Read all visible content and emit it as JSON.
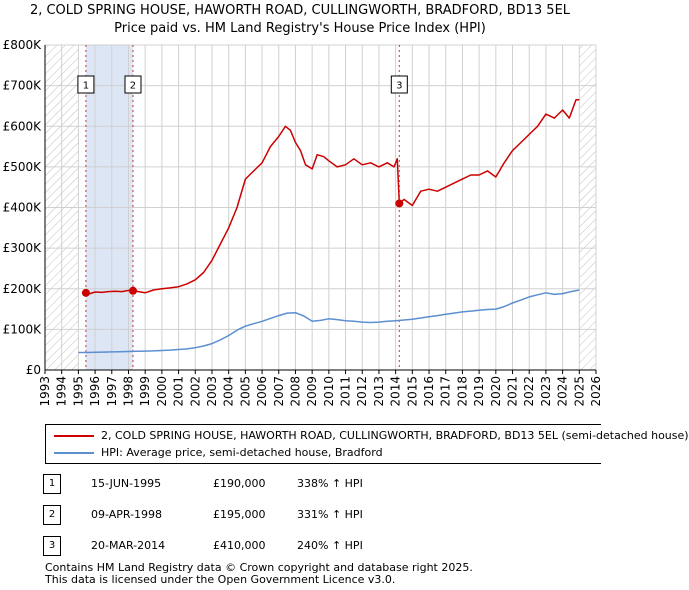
{
  "header": {
    "title_line1": "2, COLD SPRING HOUSE, HAWORTH ROAD, CULLINGWORTH, BRADFORD, BD13 5EL",
    "title_line2": "Price paid vs. HM Land Registry's House Price Index (HPI)"
  },
  "colors": {
    "price_line": "#cc0000",
    "hpi_line": "#5b8fd0",
    "shade": "#dde6f5",
    "hatch": "#c0c0c0",
    "grid": "#d0d0d0",
    "sale_vline": "#cc0000"
  },
  "chart_data": {
    "type": "line",
    "title": "Price paid vs. HM Land Registry's House Price Index (HPI)",
    "xlabel": "",
    "ylabel": "",
    "xlim": [
      1993,
      2026
    ],
    "ylim": [
      0,
      800000
    ],
    "y_ticks": [
      0,
      100000,
      200000,
      300000,
      400000,
      500000,
      600000,
      700000,
      800000
    ],
    "y_tick_labels": [
      "£0",
      "£100K",
      "£200K",
      "£300K",
      "£400K",
      "£500K",
      "£600K",
      "£700K",
      "£800K"
    ],
    "x_ticks": [
      1993,
      1994,
      1995,
      1996,
      1997,
      1998,
      1999,
      2000,
      2001,
      2002,
      2003,
      2004,
      2005,
      2006,
      2007,
      2008,
      2009,
      2010,
      2011,
      2012,
      2013,
      2014,
      2015,
      2016,
      2017,
      2018,
      2019,
      2020,
      2021,
      2022,
      2023,
      2024,
      2025,
      2026
    ],
    "hatched_ranges": [
      [
        1993,
        1995.0
      ],
      [
        2025.0,
        2026
      ]
    ],
    "shaded_ranges": [
      [
        1995.45,
        1998.27
      ]
    ],
    "series": [
      {
        "name": "2, COLD SPRING HOUSE, HAWORTH ROAD, CULLINGWORTH, BRADFORD, BD13 5EL (semi-detached house)",
        "color": "#cc0000",
        "x": [
          1995.45,
          1995.7,
          1996.0,
          1996.4,
          1996.8,
          1997.2,
          1997.6,
          1998.0,
          1998.27,
          1998.6,
          1999.0,
          1999.5,
          2000.0,
          2000.5,
          2001.0,
          2001.5,
          2002.0,
          2002.5,
          2003.0,
          2003.5,
          2004.0,
          2004.5,
          2005.0,
          2005.5,
          2006.0,
          2006.5,
          2007.0,
          2007.4,
          2007.7,
          2008.0,
          2008.3,
          2008.6,
          2009.0,
          2009.3,
          2009.7,
          2010.0,
          2010.5,
          2011.0,
          2011.5,
          2012.0,
          2012.5,
          2013.0,
          2013.5,
          2013.9,
          2014.1,
          2014.22,
          2014.5,
          2015.0,
          2015.5,
          2016.0,
          2016.5,
          2017.0,
          2017.5,
          2018.0,
          2018.5,
          2019.0,
          2019.5,
          2020.0,
          2020.5,
          2021.0,
          2021.5,
          2022.0,
          2022.5,
          2023.0,
          2023.5,
          2024.0,
          2024.4,
          2024.8,
          2025.0
        ],
        "values": [
          190000,
          188000,
          192000,
          191000,
          193000,
          194000,
          193000,
          196000,
          195000,
          193000,
          190000,
          197000,
          200000,
          202000,
          205000,
          212000,
          222000,
          240000,
          270000,
          310000,
          350000,
          400000,
          470000,
          490000,
          510000,
          550000,
          575000,
          600000,
          590000,
          560000,
          540000,
          505000,
          495000,
          530000,
          525000,
          515000,
          500000,
          505000,
          520000,
          505000,
          510000,
          500000,
          510000,
          500000,
          520000,
          410000,
          420000,
          405000,
          440000,
          445000,
          440000,
          450000,
          460000,
          470000,
          480000,
          480000,
          490000,
          475000,
          510000,
          540000,
          560000,
          580000,
          600000,
          630000,
          620000,
          640000,
          620000,
          665000,
          665000
        ]
      },
      {
        "name": "HPI: Average price, semi-detached house, Bradford",
        "color": "#5b8fd0",
        "x": [
          1995.0,
          1995.5,
          1996.0,
          1996.5,
          1997.0,
          1997.5,
          1998.0,
          1998.5,
          1999.0,
          1999.5,
          2000.0,
          2000.5,
          2001.0,
          2001.5,
          2002.0,
          2002.5,
          2003.0,
          2003.5,
          2004.0,
          2004.5,
          2005.0,
          2005.5,
          2006.0,
          2006.5,
          2007.0,
          2007.5,
          2008.0,
          2008.5,
          2009.0,
          2009.5,
          2010.0,
          2010.5,
          2011.0,
          2011.5,
          2012.0,
          2012.5,
          2013.0,
          2013.5,
          2014.0,
          2014.5,
          2015.0,
          2015.5,
          2016.0,
          2016.5,
          2017.0,
          2017.5,
          2018.0,
          2018.5,
          2019.0,
          2019.5,
          2020.0,
          2020.5,
          2021.0,
          2021.5,
          2022.0,
          2022.5,
          2023.0,
          2023.5,
          2024.0,
          2024.5,
          2025.0
        ],
        "values": [
          43000,
          43000,
          43500,
          44000,
          44500,
          45000,
          45500,
          46000,
          46500,
          47000,
          48000,
          49000,
          50500,
          52000,
          55000,
          59000,
          65000,
          74000,
          85000,
          98000,
          108000,
          114000,
          120000,
          127000,
          134000,
          140000,
          141000,
          133000,
          120000,
          122000,
          126000,
          124000,
          121000,
          120000,
          118000,
          117000,
          118000,
          120000,
          121000,
          123000,
          125000,
          128000,
          131000,
          134000,
          137000,
          140000,
          143000,
          145000,
          147000,
          149000,
          150000,
          156000,
          165000,
          172000,
          180000,
          185000,
          190000,
          186000,
          188000,
          193000,
          197000
        ]
      }
    ],
    "sales": [
      {
        "label": "1",
        "x": 1995.45,
        "value": 190000
      },
      {
        "label": "2",
        "x": 1998.27,
        "value": 195000
      },
      {
        "label": "3",
        "x": 2014.22,
        "value": 410000
      }
    ]
  },
  "legend": {
    "price_label": "2, COLD SPRING HOUSE, HAWORTH ROAD, CULLINGWORTH, BRADFORD, BD13 5EL (semi-detached house)",
    "hpi_label": "HPI: Average price, semi-detached house, Bradford"
  },
  "sales_table": [
    {
      "num": "1",
      "date": "15-JUN-1995",
      "price": "£190,000",
      "hpi": "338% ↑ HPI"
    },
    {
      "num": "2",
      "date": "09-APR-1998",
      "price": "£195,000",
      "hpi": "331% ↑ HPI"
    },
    {
      "num": "3",
      "date": "20-MAR-2014",
      "price": "£410,000",
      "hpi": "240% ↑ HPI"
    }
  ],
  "footer": {
    "line1": "Contains HM Land Registry data © Crown copyright and database right 2025.",
    "line2": "This data is licensed under the Open Government Licence v3.0."
  }
}
